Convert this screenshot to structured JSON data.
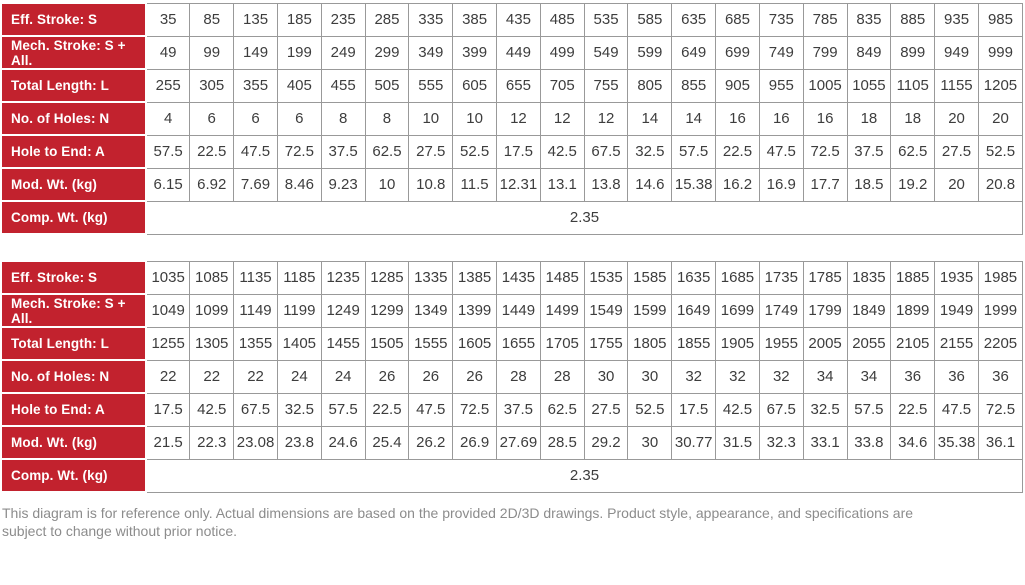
{
  "colors": {
    "header_red": "#c2222e",
    "grid_border": "#999999",
    "data_text": "#3d3d3d",
    "footer_text": "#8c8c8c"
  },
  "tables": [
    {
      "rows": [
        {
          "key": "eff_stroke",
          "label": "Eff. Stroke: S",
          "values": [
            "35",
            "85",
            "135",
            "185",
            "235",
            "285",
            "335",
            "385",
            "435",
            "485",
            "535",
            "585",
            "635",
            "685",
            "735",
            "785",
            "835",
            "885",
            "935",
            "985"
          ]
        },
        {
          "key": "mech_stroke",
          "label": "Mech. Stroke: S + All.",
          "values": [
            "49",
            "99",
            "149",
            "199",
            "249",
            "299",
            "349",
            "399",
            "449",
            "499",
            "549",
            "599",
            "649",
            "699",
            "749",
            "799",
            "849",
            "899",
            "949",
            "999"
          ]
        },
        {
          "key": "total_length",
          "label": "Total Length: L",
          "values": [
            "255",
            "305",
            "355",
            "405",
            "455",
            "505",
            "555",
            "605",
            "655",
            "705",
            "755",
            "805",
            "855",
            "905",
            "955",
            "1005",
            "1055",
            "1105",
            "1155",
            "1205"
          ]
        },
        {
          "key": "num_holes",
          "label": "No. of Holes: N",
          "values": [
            "4",
            "6",
            "6",
            "6",
            "8",
            "8",
            "10",
            "10",
            "12",
            "12",
            "12",
            "14",
            "14",
            "16",
            "16",
            "16",
            "18",
            "18",
            "20",
            "20"
          ]
        },
        {
          "key": "hole_to_end",
          "label": "Hole to End: A",
          "values": [
            "57.5",
            "22.5",
            "47.5",
            "72.5",
            "37.5",
            "62.5",
            "27.5",
            "52.5",
            "17.5",
            "42.5",
            "67.5",
            "32.5",
            "57.5",
            "22.5",
            "47.5",
            "72.5",
            "37.5",
            "62.5",
            "27.5",
            "52.5"
          ]
        },
        {
          "key": "mod_wt",
          "label": "Mod. Wt. (kg)",
          "values": [
            "6.15",
            "6.92",
            "7.69",
            "8.46",
            "9.23",
            "10",
            "10.8",
            "11.5",
            "12.31",
            "13.1",
            "13.8",
            "14.6",
            "15.38",
            "16.2",
            "16.9",
            "17.7",
            "18.5",
            "19.2",
            "20",
            "20.8"
          ]
        },
        {
          "key": "comp_wt",
          "label": "Comp. Wt. (kg)",
          "span_value": "2.35"
        }
      ]
    },
    {
      "rows": [
        {
          "key": "eff_stroke",
          "label": "Eff. Stroke: S",
          "values": [
            "1035",
            "1085",
            "1135",
            "1185",
            "1235",
            "1285",
            "1335",
            "1385",
            "1435",
            "1485",
            "1535",
            "1585",
            "1635",
            "1685",
            "1735",
            "1785",
            "1835",
            "1885",
            "1935",
            "1985"
          ]
        },
        {
          "key": "mech_stroke",
          "label": "Mech. Stroke: S + All.",
          "values": [
            "1049",
            "1099",
            "1149",
            "1199",
            "1249",
            "1299",
            "1349",
            "1399",
            "1449",
            "1499",
            "1549",
            "1599",
            "1649",
            "1699",
            "1749",
            "1799",
            "1849",
            "1899",
            "1949",
            "1999"
          ]
        },
        {
          "key": "total_length",
          "label": "Total Length: L",
          "values": [
            "1255",
            "1305",
            "1355",
            "1405",
            "1455",
            "1505",
            "1555",
            "1605",
            "1655",
            "1705",
            "1755",
            "1805",
            "1855",
            "1905",
            "1955",
            "2005",
            "2055",
            "2105",
            "2155",
            "2205"
          ]
        },
        {
          "key": "num_holes",
          "label": "No. of Holes: N",
          "values": [
            "22",
            "22",
            "22",
            "24",
            "24",
            "26",
            "26",
            "26",
            "28",
            "28",
            "30",
            "30",
            "32",
            "32",
            "32",
            "34",
            "34",
            "36",
            "36",
            "36"
          ]
        },
        {
          "key": "hole_to_end",
          "label": "Hole to End: A",
          "values": [
            "17.5",
            "42.5",
            "67.5",
            "32.5",
            "57.5",
            "22.5",
            "47.5",
            "72.5",
            "37.5",
            "62.5",
            "27.5",
            "52.5",
            "17.5",
            "42.5",
            "67.5",
            "32.5",
            "57.5",
            "22.5",
            "47.5",
            "72.5"
          ]
        },
        {
          "key": "mod_wt",
          "label": "Mod. Wt. (kg)",
          "values": [
            "21.5",
            "22.3",
            "23.08",
            "23.8",
            "24.6",
            "25.4",
            "26.2",
            "26.9",
            "27.69",
            "28.5",
            "29.2",
            "30",
            "30.77",
            "31.5",
            "32.3",
            "33.1",
            "33.8",
            "34.6",
            "35.38",
            "36.1"
          ]
        },
        {
          "key": "comp_wt",
          "label": "Comp. Wt. (kg)",
          "span_value": "2.35"
        }
      ]
    }
  ],
  "footer": {
    "note": "This diagram is for reference only. Actual dimensions are based on the provided 2D/3D drawings. Product style, appearance, and specifications are subject to change without prior notice."
  }
}
